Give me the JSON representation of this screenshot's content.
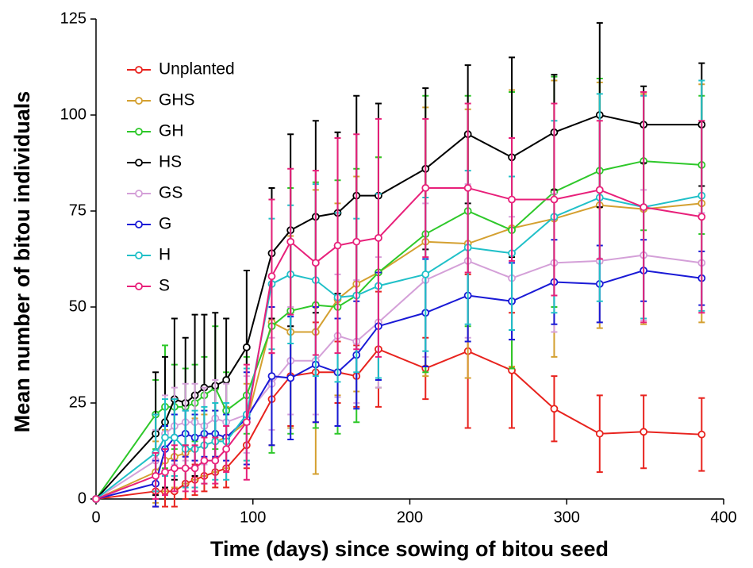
{
  "chart_data": {
    "type": "line",
    "xlabel": "Time (days) since sowing of bitou seed",
    "ylabel": "Mean number of bitou individuals",
    "x": [
      0,
      38,
      44,
      50,
      57,
      63,
      69,
      76,
      83,
      96,
      112,
      124,
      140,
      154,
      166,
      180,
      210,
      237,
      265,
      292,
      321,
      349,
      386
    ],
    "xlim": [
      0,
      400
    ],
    "xticks": [
      0,
      100,
      200,
      300,
      400
    ],
    "ylim": [
      0,
      125
    ],
    "yticks": [
      0,
      25,
      50,
      75,
      100,
      125
    ],
    "legend": "upper left",
    "series": [
      {
        "name": "Unplanted",
        "color": "#e8231e",
        "values": [
          0,
          2,
          2,
          2,
          4,
          5,
          6,
          7,
          8,
          14,
          26,
          32,
          33,
          33,
          32,
          39,
          34,
          38.5,
          33.5,
          23.5,
          17,
          17.5,
          16.8
        ],
        "errors": [
          0,
          4,
          4,
          4,
          4,
          4,
          4,
          4,
          5,
          6,
          12,
          13,
          13,
          8,
          8,
          15,
          8,
          20,
          15,
          8.5,
          10,
          9.5,
          9.5
        ]
      },
      {
        "name": "GHS",
        "color": "#d4a030",
        "values": [
          0,
          7,
          10,
          11,
          12,
          13,
          14,
          15,
          16,
          20,
          46,
          43.5,
          43.5,
          52,
          56,
          59,
          67,
          66.5,
          70.5,
          73,
          76.5,
          75.5,
          77
        ],
        "errors": [
          0,
          8,
          8,
          8,
          8,
          8,
          8,
          8,
          8,
          10,
          32,
          25,
          37,
          25,
          28,
          30,
          35,
          35,
          36,
          36,
          32,
          30,
          31
        ]
      },
      {
        "name": "GH",
        "color": "#2ec82a",
        "values": [
          0,
          22,
          24,
          24,
          24,
          25,
          27,
          29,
          23,
          27,
          45,
          49,
          50.5,
          50,
          53,
          59,
          69,
          75,
          70,
          80,
          85.5,
          88,
          87
        ],
        "errors": [
          0,
          9,
          16,
          11,
          10,
          10,
          10,
          16,
          10,
          10,
          33,
          32,
          32,
          33,
          33,
          30,
          36,
          30,
          36,
          30,
          24,
          18,
          18
        ]
      },
      {
        "name": "HS",
        "color": "#000000",
        "values": [
          0,
          17,
          20,
          26,
          25,
          27,
          29,
          29.5,
          31,
          39.5,
          64,
          70,
          73.5,
          74.5,
          79,
          79,
          86,
          95,
          89,
          95.5,
          100,
          97.5,
          97.5
        ],
        "errors": [
          0,
          16,
          17,
          21,
          17,
          21,
          19,
          19,
          16,
          20,
          17,
          25,
          25,
          21,
          26,
          24,
          21,
          18,
          26,
          15,
          24,
          10,
          16
        ]
      },
      {
        "name": "GS",
        "color": "#d4a0d8",
        "values": [
          0,
          10,
          17,
          19,
          20,
          20,
          19,
          21,
          20,
          22,
          30,
          36,
          36,
          42.5,
          41,
          46,
          57,
          62,
          57.5,
          61.5,
          62,
          63.5,
          61.5
        ],
        "errors": [
          0,
          8,
          10,
          10,
          10,
          10,
          10,
          10,
          10,
          10,
          12,
          14,
          14,
          16,
          16,
          17,
          20,
          20,
          16,
          18,
          16,
          17,
          13
        ]
      },
      {
        "name": "G",
        "color": "#1a1ad6",
        "values": [
          0,
          4,
          13,
          16,
          17,
          16,
          17,
          17,
          16,
          21,
          32,
          31.5,
          35,
          33,
          37.5,
          45,
          48.5,
          53,
          51.5,
          56.5,
          56,
          59.5,
          57.5
        ],
        "errors": [
          0,
          6,
          6,
          6,
          6,
          6,
          6,
          6,
          6,
          12,
          18,
          16,
          15,
          14,
          14,
          14,
          14,
          12,
          10,
          11,
          10,
          8,
          7
        ]
      },
      {
        "name": "H",
        "color": "#20c0c8",
        "values": [
          0,
          12,
          16,
          16,
          13,
          13,
          14,
          15,
          15,
          22,
          56,
          58.5,
          57,
          52.5,
          53,
          55.5,
          58.5,
          65.5,
          64,
          73.5,
          78.5,
          76,
          79
        ],
        "errors": [
          0,
          10,
          10,
          10,
          10,
          10,
          10,
          10,
          10,
          12,
          17,
          18,
          25,
          22,
          20,
          24,
          20,
          20,
          20,
          25,
          27,
          29,
          30
        ]
      },
      {
        "name": "S",
        "color": "#e8207a",
        "values": [
          0,
          6,
          7,
          8,
          8,
          8,
          10,
          10,
          13,
          20,
          58,
          67,
          61.5,
          66,
          67,
          68,
          81,
          81,
          78,
          78,
          80.5,
          76,
          73.5
        ],
        "errors": [
          0,
          6,
          6,
          6,
          6,
          6,
          6,
          6,
          6,
          15,
          20,
          19,
          24,
          28,
          28,
          31,
          18,
          22,
          16,
          25,
          18,
          30,
          25
        ]
      }
    ]
  }
}
